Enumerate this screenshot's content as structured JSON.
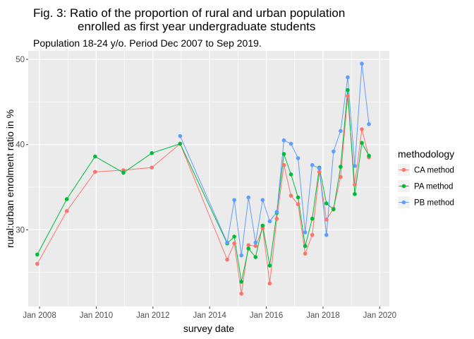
{
  "chart_data": {
    "type": "line",
    "title_line1": "Fig. 3: Ratio of the proportion of rural and urban population",
    "title_line2": "enrolled as first year undergraduate students",
    "subtitle": "Population 18-24 y/o. Period Dec 2007 to Sep 2019.",
    "xlabel": "survey date",
    "ylabel": "rural:urban enrolment ratio in %",
    "x_ticks": [
      {
        "label": "Jan 2008",
        "value": 2008.0
      },
      {
        "label": "Jan 2010",
        "value": 2010.0
      },
      {
        "label": "Jan 2012",
        "value": 2012.0
      },
      {
        "label": "Jan 2014",
        "value": 2014.0
      },
      {
        "label": "Jan 2016",
        "value": 2016.0
      },
      {
        "label": "Jan 2018",
        "value": 2018.0
      },
      {
        "label": "Jan 2020",
        "value": 2020.0
      }
    ],
    "y_ticks": [
      30,
      40,
      50
    ],
    "xlim": [
      2007.6,
      2020.34
    ],
    "ylim": [
      21.0,
      51.0
    ],
    "grid": true,
    "legend_position": "right",
    "legend_title": "methodology",
    "series": [
      {
        "name": "CA method",
        "color": "#F8766D",
        "points": [
          [
            2007.92,
            26.0
          ],
          [
            2008.96,
            32.2
          ],
          [
            2009.96,
            36.8
          ],
          [
            2010.96,
            37.0
          ],
          [
            2011.96,
            37.3
          ],
          [
            2012.96,
            40.1
          ],
          [
            2014.62,
            26.5
          ],
          [
            2014.87,
            28.4
          ],
          [
            2015.12,
            22.5
          ],
          [
            2015.37,
            28.2
          ],
          [
            2015.62,
            28.1
          ],
          [
            2015.87,
            30.2
          ],
          [
            2016.12,
            23.7
          ],
          [
            2016.37,
            31.3
          ],
          [
            2016.62,
            37.6
          ],
          [
            2016.87,
            34.0
          ],
          [
            2017.12,
            33.0
          ],
          [
            2017.37,
            27.2
          ],
          [
            2017.62,
            29.4
          ],
          [
            2017.87,
            36.8
          ],
          [
            2018.12,
            31.2
          ],
          [
            2018.37,
            32.5
          ],
          [
            2018.62,
            36.2
          ],
          [
            2018.87,
            45.7
          ],
          [
            2019.12,
            35.3
          ],
          [
            2019.37,
            41.8
          ],
          [
            2019.62,
            38.5
          ]
        ]
      },
      {
        "name": "PA method",
        "color": "#00BA38",
        "points": [
          [
            2007.92,
            27.1
          ],
          [
            2008.96,
            33.6
          ],
          [
            2009.96,
            38.6
          ],
          [
            2010.96,
            36.7
          ],
          [
            2011.96,
            39.0
          ],
          [
            2012.96,
            40.1
          ],
          [
            2014.62,
            28.4
          ],
          [
            2014.87,
            29.2
          ],
          [
            2015.12,
            23.9
          ],
          [
            2015.37,
            27.8
          ],
          [
            2015.62,
            26.8
          ],
          [
            2015.87,
            30.5
          ],
          [
            2016.12,
            25.8
          ],
          [
            2016.37,
            32.0
          ],
          [
            2016.62,
            38.9
          ],
          [
            2016.87,
            36.5
          ],
          [
            2017.12,
            33.8
          ],
          [
            2017.37,
            28.1
          ],
          [
            2017.62,
            31.3
          ],
          [
            2017.87,
            37.3
          ],
          [
            2018.12,
            33.1
          ],
          [
            2018.37,
            32.4
          ],
          [
            2018.62,
            37.4
          ],
          [
            2018.87,
            46.4
          ],
          [
            2019.12,
            34.2
          ],
          [
            2019.37,
            40.2
          ],
          [
            2019.62,
            38.7
          ]
        ]
      },
      {
        "name": "PB method",
        "color": "#619CFF",
        "points": [
          [
            2012.96,
            41.0
          ],
          [
            2014.62,
            28.5
          ],
          [
            2014.87,
            33.5
          ],
          [
            2015.12,
            27.0
          ],
          [
            2015.37,
            33.8
          ],
          [
            2015.62,
            28.5
          ],
          [
            2015.87,
            33.5
          ],
          [
            2016.12,
            31.0
          ],
          [
            2016.37,
            32.1
          ],
          [
            2016.62,
            40.5
          ],
          [
            2016.87,
            40.1
          ],
          [
            2017.12,
            38.4
          ],
          [
            2017.37,
            29.7
          ],
          [
            2017.62,
            37.6
          ],
          [
            2017.87,
            37.2
          ],
          [
            2018.12,
            29.4
          ],
          [
            2018.37,
            39.2
          ],
          [
            2018.62,
            41.6
          ],
          [
            2018.87,
            47.9
          ],
          [
            2019.12,
            37.5
          ],
          [
            2019.37,
            49.5
          ],
          [
            2019.62,
            42.4
          ]
        ]
      }
    ]
  }
}
